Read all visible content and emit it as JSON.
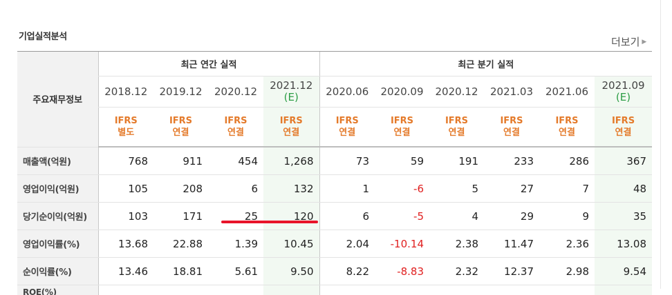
{
  "section_title": "기업실적분석",
  "more_link": {
    "label": "더보기",
    "icon": "chevron-right-icon"
  },
  "table": {
    "label_header": "주요재무정보",
    "annual_group": "최근 연간 실적",
    "quarter_group": "최근 분기 실적",
    "periods": [
      {
        "date": "2018.12",
        "estimate": "",
        "standard": "IFRS",
        "basis": "별도"
      },
      {
        "date": "2019.12",
        "estimate": "",
        "standard": "IFRS",
        "basis": "연결"
      },
      {
        "date": "2020.12",
        "estimate": "",
        "standard": "IFRS",
        "basis": "연결"
      },
      {
        "date": "2021.12",
        "estimate": "(E)",
        "standard": "IFRS",
        "basis": "연결"
      },
      {
        "date": "2020.06",
        "estimate": "",
        "standard": "IFRS",
        "basis": "연결"
      },
      {
        "date": "2020.09",
        "estimate": "",
        "standard": "IFRS",
        "basis": "연결"
      },
      {
        "date": "2020.12",
        "estimate": "",
        "standard": "IFRS",
        "basis": "연결"
      },
      {
        "date": "2021.03",
        "estimate": "",
        "standard": "IFRS",
        "basis": "연결"
      },
      {
        "date": "2021.06",
        "estimate": "",
        "standard": "IFRS",
        "basis": "연결"
      },
      {
        "date": "2021.09",
        "estimate": "(E)",
        "standard": "IFRS",
        "basis": "연결"
      }
    ],
    "rows": [
      {
        "label": "매출액(억원)",
        "values": [
          "768",
          "911",
          "454",
          "1,268",
          "73",
          "59",
          "191",
          "233",
          "286",
          "367"
        ]
      },
      {
        "label": "영업이익(억원)",
        "values": [
          "105",
          "208",
          "6",
          "132",
          "1",
          "-6",
          "5",
          "27",
          "7",
          "48"
        ]
      },
      {
        "label": "당기순이익(억원)",
        "values": [
          "103",
          "171",
          "25",
          "120",
          "6",
          "-5",
          "4",
          "29",
          "9",
          "35"
        ]
      },
      {
        "label": "영업이익률(%)",
        "values": [
          "13.68",
          "22.88",
          "1.39",
          "10.45",
          "2.04",
          "-10.14",
          "2.38",
          "11.47",
          "2.36",
          "13.08"
        ]
      },
      {
        "label": "순이익률(%)",
        "values": [
          "13.46",
          "18.81",
          "5.61",
          "9.50",
          "8.22",
          "-8.83",
          "2.32",
          "12.37",
          "2.98",
          "9.54"
        ]
      }
    ],
    "partial_row_label": "ROE(%)"
  },
  "colors": {
    "estimate_bg": "#f2f9f2",
    "estimate_text": "#2c9d45",
    "standard_text": "#e47a2a",
    "negative": "#e02020",
    "annotation": "#e8142a"
  }
}
